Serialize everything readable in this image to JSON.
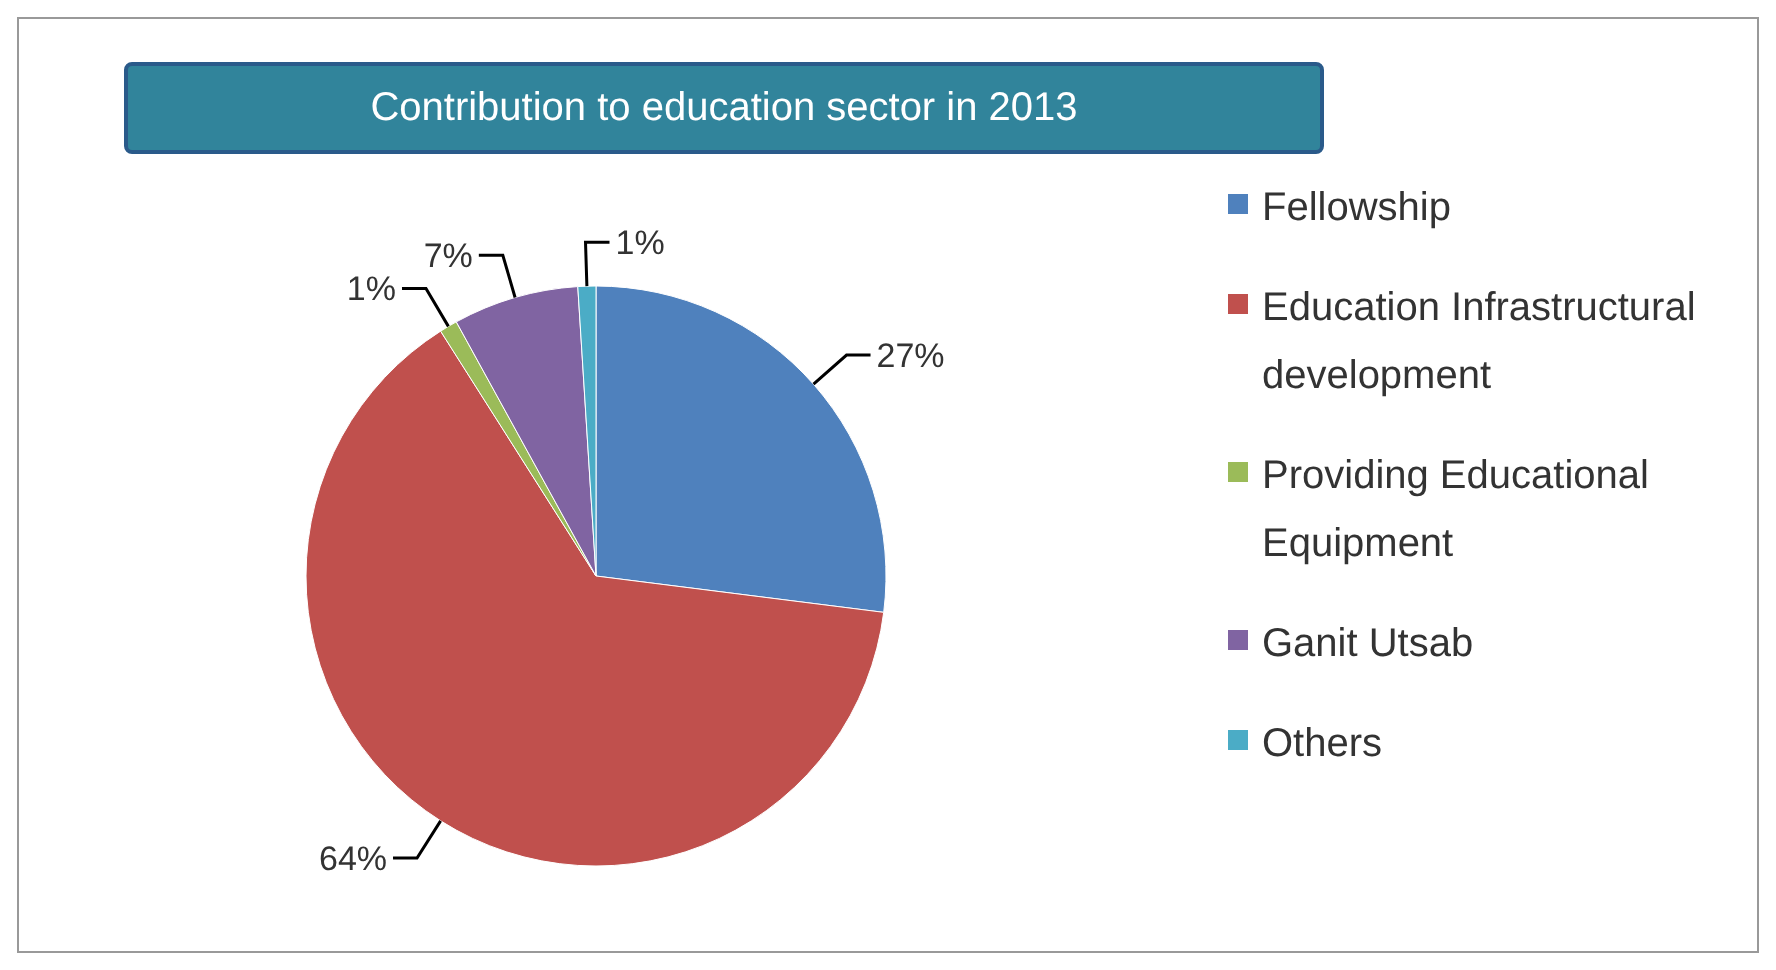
{
  "chart_data": {
    "type": "pie",
    "title": "Contribution to  education  sector in 2013",
    "categories": [
      "Fellowship",
      "Education Infrastructural development",
      "Providing Educational Equipment",
      "Ganit Utsab",
      "Others"
    ],
    "values": [
      27,
      64,
      1,
      7,
      1
    ],
    "colors": [
      "#4f81bd",
      "#c0504d",
      "#9bbb59",
      "#8064a2",
      "#4bacc6"
    ],
    "value_labels": [
      "27%",
      "64%",
      "1%",
      "7%",
      "1%"
    ],
    "legend": "right"
  }
}
